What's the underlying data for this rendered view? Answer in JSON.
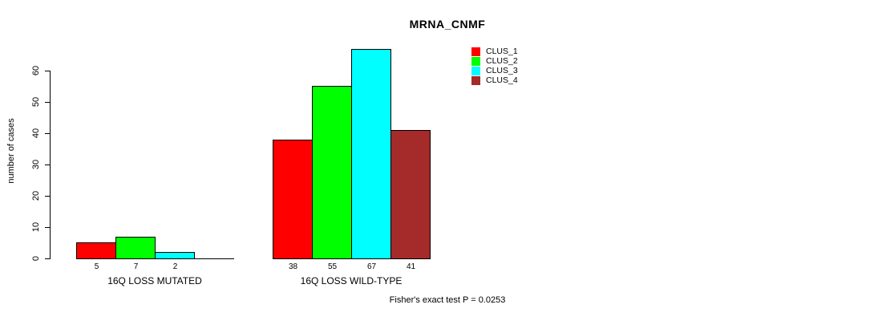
{
  "chart_data": {
    "type": "bar",
    "title": "MRNA_CNMF",
    "ylabel": "number of cases",
    "ylim": [
      0,
      60
    ],
    "yticks": [
      0,
      10,
      20,
      30,
      40,
      50,
      60
    ],
    "grid": false,
    "legend_position": "top-right",
    "legend": [
      {
        "label": "CLUS_1",
        "color": "#FF0000"
      },
      {
        "label": "CLUS_2",
        "color": "#00FF00"
      },
      {
        "label": "CLUS_3",
        "color": "#00FFFF"
      },
      {
        "label": "CLUS_4",
        "color": "#A52A2A"
      }
    ],
    "groups": [
      {
        "label": "16Q LOSS MUTATED",
        "values": [
          5,
          7,
          2,
          0
        ],
        "bar_labels": [
          "5",
          "7",
          "2",
          ""
        ]
      },
      {
        "label": "16Q LOSS WILD-TYPE",
        "values": [
          38,
          55,
          67,
          41
        ],
        "bar_labels": [
          "38",
          "55",
          "67",
          "41"
        ]
      }
    ],
    "footnote": "Fisher's exact test P = 0.0253",
    "colors": {
      "background": "#FFFFFF",
      "axis": "#000000",
      "bar_border": "#000000"
    }
  }
}
